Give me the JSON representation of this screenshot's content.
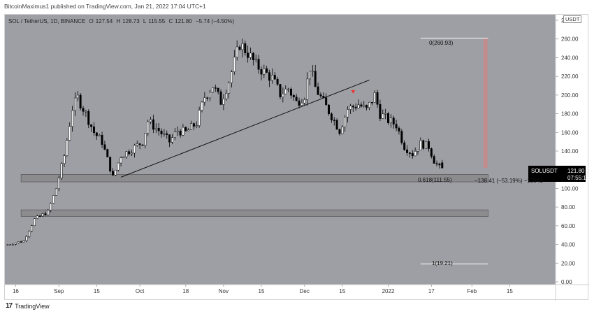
{
  "header": {
    "text": "BitcoinMaximus1 published on TradingView.com, Jan 21, 2022 17:04 UTC+1"
  },
  "legend": {
    "symbol": "SOL / TetherUS, 1D, BINANCE",
    "o_label": "O",
    "o": "127.54",
    "h_label": "H",
    "h": "128.73",
    "l_label": "L",
    "l": "115.55",
    "c_label": "C",
    "c": "121.80",
    "change": "−5.74 (−4.50%)"
  },
  "currency_label": "USDT",
  "price_tag": {
    "symbol": "SOLUSDT",
    "price": "121.80",
    "countdown": "07:55:18"
  },
  "annotations": {
    "fib_0": "0(260.93)",
    "fib_0618": "0.618(111.55)",
    "fib_1": "1(19.21)",
    "measure": "−138.41 (−53.19%) −13841"
  },
  "footer": {
    "logo": "17",
    "brand": "TradingView"
  },
  "colors": {
    "pane_bg": "#9e9fa5",
    "candle_up": "#ffffff",
    "candle_down": "#000000",
    "zone_fill": "#8c8c8f",
    "measure_bar": "#c58a8a",
    "marker": "#e53935"
  },
  "chart_data": {
    "type": "candlestick",
    "title": "SOL / TetherUS, 1D, BINANCE",
    "x_axis": {
      "ticks": [
        {
          "label": "16",
          "day": 0
        },
        {
          "label": "Sep",
          "day": 16
        },
        {
          "label": "15",
          "day": 30
        },
        {
          "label": "Oct",
          "day": 46
        },
        {
          "label": "18",
          "day": 63
        },
        {
          "label": "Nov",
          "day": 77
        },
        {
          "label": "15",
          "day": 91
        },
        {
          "label": "Dec",
          "day": 107
        },
        {
          "label": "15",
          "day": 121
        },
        {
          "label": "2022",
          "day": 138
        },
        {
          "label": "17",
          "day": 154
        },
        {
          "label": "Feb",
          "day": 169
        },
        {
          "label": "15",
          "day": 183
        }
      ],
      "range_days": [
        -4,
        200
      ]
    },
    "y_axis": {
      "range": [
        -3,
        286
      ],
      "ticks": [
        0,
        20,
        40,
        60,
        80,
        100,
        120,
        140,
        160,
        180,
        200,
        220,
        240,
        260,
        280
      ],
      "tick_labels": [
        "0.00",
        "20.00",
        "40.00",
        "60.00",
        "80.00",
        "100.00",
        "120.00",
        "140.00",
        "160.00",
        "180.00",
        "200.00",
        "220.00",
        "240.00",
        "260.00",
        "280.00"
      ]
    },
    "anchors": [
      [
        -3,
        39
      ],
      [
        4,
        44
      ],
      [
        8,
        67
      ],
      [
        13,
        75
      ],
      [
        16,
        100
      ],
      [
        19,
        135
      ],
      [
        22,
        186
      ],
      [
        24,
        197
      ],
      [
        27,
        180
      ],
      [
        30,
        160
      ],
      [
        33,
        150
      ],
      [
        37,
        112
      ],
      [
        40,
        135
      ],
      [
        44,
        142
      ],
      [
        48,
        150
      ],
      [
        50,
        172
      ],
      [
        54,
        162
      ],
      [
        58,
        150
      ],
      [
        61,
        162
      ],
      [
        64,
        160
      ],
      [
        68,
        170
      ],
      [
        71,
        198
      ],
      [
        74,
        210
      ],
      [
        77,
        193
      ],
      [
        80,
        215
      ],
      [
        84,
        255
      ],
      [
        87,
        245
      ],
      [
        90,
        232
      ],
      [
        93,
        225
      ],
      [
        96,
        218
      ],
      [
        99,
        201
      ],
      [
        102,
        207
      ],
      [
        105,
        192
      ],
      [
        108,
        200
      ],
      [
        110,
        230
      ],
      [
        112,
        208
      ],
      [
        115,
        192
      ],
      [
        118,
        178
      ],
      [
        121,
        162
      ],
      [
        124,
        185
      ],
      [
        128,
        190
      ],
      [
        131,
        184
      ],
      [
        134,
        200
      ],
      [
        136,
        180
      ],
      [
        139,
        173
      ],
      [
        142,
        168
      ],
      [
        145,
        145
      ],
      [
        148,
        137
      ],
      [
        151,
        148
      ],
      [
        154,
        145
      ],
      [
        156,
        130
      ],
      [
        158,
        121.8
      ]
    ],
    "trendline": {
      "from": [
        39,
        112
      ],
      "to": [
        131,
        216
      ]
    },
    "zones": [
      {
        "name": "support-zone-upper",
        "from_day": 2,
        "to_day": 175,
        "low": 107,
        "high": 115
      },
      {
        "name": "support-zone-lower",
        "from_day": 2,
        "to_day": 175,
        "low": 70,
        "high": 77
      }
    ],
    "fib_levels": [
      {
        "name": "fib-0-line",
        "value": 260.93,
        "from_day": 150,
        "to_day": 175
      },
      {
        "name": "fib-1-line",
        "value": 19.21,
        "from_day": 150,
        "to_day": 175
      }
    ],
    "measure_bar": {
      "day": 174,
      "low": 122,
      "high": 261
    },
    "marker": {
      "day": 125,
      "value": 203
    }
  }
}
